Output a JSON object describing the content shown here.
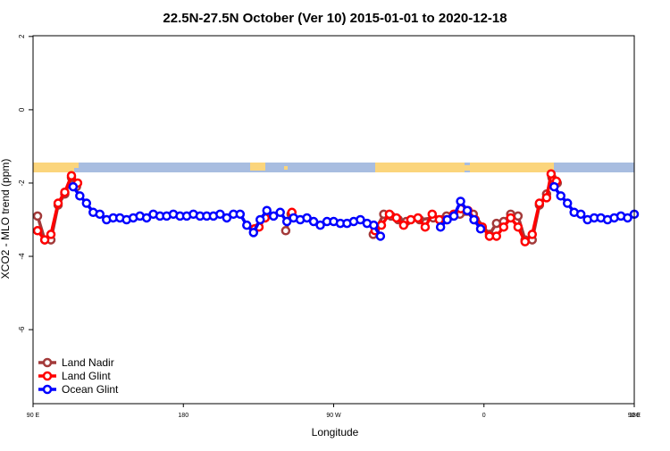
{
  "chart_data": {
    "type": "line",
    "title": "22.5N-27.5N October (Ver 10)   2015-01-01 to 2020-12-18",
    "x_label": "Longitude",
    "y_label": "XCO2 - MLO trend (ppm)",
    "xlim": [
      90,
      450
    ],
    "xticks": [
      {
        "value": 90,
        "label": "90 E"
      },
      180,
      {
        "value": 270,
        "label": "90 W"
      },
      {
        "value": 360,
        "label": "0"
      },
      {
        "value": 450,
        "label": "90 E"
      },
      {
        "value": 540,
        "label": "180"
      }
    ],
    "ylim": [
      -8.02,
      2.02
    ],
    "yticks": [
      2,
      0,
      -2,
      -4,
      -6
    ],
    "legend": "bottom left",
    "series": [
      {
        "name": "Land Nadir",
        "color": "#a33a3a",
        "x": [
          92.7,
          97,
          100.7,
          105,
          109,
          113,
          116,
          180,
          241.3,
          244.5,
          270,
          293.7,
          300,
          304.4,
          308.7,
          313.5,
          321.5,
          329.6,
          337.6,
          345.6,
          353.6,
          363.3,
          367.5,
          371.8,
          376,
          380.4,
          384.6,
          388.9,
          393.2,
          397.5,
          400.7,
          403.9
        ],
        "values": [
          -2.9,
          -3.55,
          -3.55,
          -2.6,
          -2.3,
          -1.85,
          -2.1,
          null,
          -3.3,
          -2.85,
          null,
          -3.4,
          -2.85,
          -2.9,
          -3.0,
          -3.05,
          -3.0,
          -2.95,
          -2.9,
          -2.85,
          -2.85,
          -3.4,
          -3.1,
          -3.05,
          -2.85,
          -2.9,
          -3.55,
          -3.55,
          -2.6,
          -2.3,
          -1.85,
          -2.0
        ]
      },
      {
        "name": "Land Glint",
        "color": "#ff0000",
        "x": [
          92.7,
          97,
          100.7,
          105,
          109,
          113,
          116.7,
          170,
          222.6,
          225.3,
          229,
          237,
          245,
          270,
          294.8,
          298.6,
          303.4,
          307.6,
          311.9,
          316.2,
          320.5,
          324.8,
          329,
          333.3,
          337.6,
          341.9,
          346.1,
          350.4,
          354.7,
          359,
          363.3,
          367.5,
          371.8,
          376,
          380.4,
          384.6,
          388.9,
          393.2,
          397.5,
          400.2,
          403.4
        ],
        "values": [
          -3.3,
          -3.55,
          -3.4,
          -2.55,
          -2.25,
          -1.8,
          -2.0,
          null,
          -3.25,
          -3.2,
          -2.95,
          null,
          -2.8,
          null,
          -3.3,
          -3.15,
          -2.85,
          -2.95,
          -3.15,
          -3.0,
          -2.95,
          -3.2,
          -2.85,
          -3.0,
          -3.0,
          -2.85,
          -2.7,
          -2.75,
          -3.0,
          -3.2,
          -3.45,
          -3.45,
          -3.2,
          -2.95,
          -3.2,
          -3.6,
          -3.4,
          -2.55,
          -2.4,
          -1.75,
          -1.95
        ]
      },
      {
        "name": "Ocean Glint",
        "color": "#0000ff",
        "x": [
          114,
          118,
          122,
          126,
          130,
          134,
          138,
          142,
          146,
          150,
          154,
          158,
          162,
          166,
          170,
          174,
          178,
          182,
          186,
          190,
          194,
          198,
          202,
          206,
          210,
          214,
          218,
          222,
          226,
          230,
          234,
          238,
          242,
          246,
          250,
          254,
          258,
          262,
          266,
          270,
          274,
          278,
          282,
          286,
          290,
          294,
          298,
          316,
          334,
          338,
          342,
          346,
          350,
          354,
          358,
          380,
          402,
          406,
          410,
          414,
          418,
          422,
          426,
          430,
          434,
          438,
          442,
          446,
          450
        ],
        "values": [
          -2.1,
          -2.35,
          -2.55,
          -2.8,
          -2.85,
          -3.0,
          -2.95,
          -2.95,
          -3.0,
          -2.95,
          -2.9,
          -2.95,
          -2.85,
          -2.9,
          -2.9,
          -2.85,
          -2.9,
          -2.9,
          -2.85,
          -2.9,
          -2.9,
          -2.9,
          -2.85,
          -2.95,
          -2.85,
          -2.85,
          -3.15,
          -3.35,
          -3.0,
          -2.75,
          -2.9,
          -2.8,
          -3.05,
          -2.95,
          -3.0,
          -2.95,
          -3.05,
          -3.15,
          -3.05,
          -3.05,
          -3.1,
          -3.1,
          -3.05,
          -3.0,
          -3.1,
          -3.15,
          -3.45,
          null,
          -3.2,
          -3.0,
          -2.9,
          -2.5,
          -2.75,
          -3.0,
          -3.25,
          null,
          -2.1,
          -2.35,
          -2.55,
          -2.8,
          -2.85,
          -3.0,
          -2.95,
          -2.95,
          -3.0,
          -2.95,
          -2.9,
          -2.95,
          -2.85
        ]
      }
    ]
  }
}
